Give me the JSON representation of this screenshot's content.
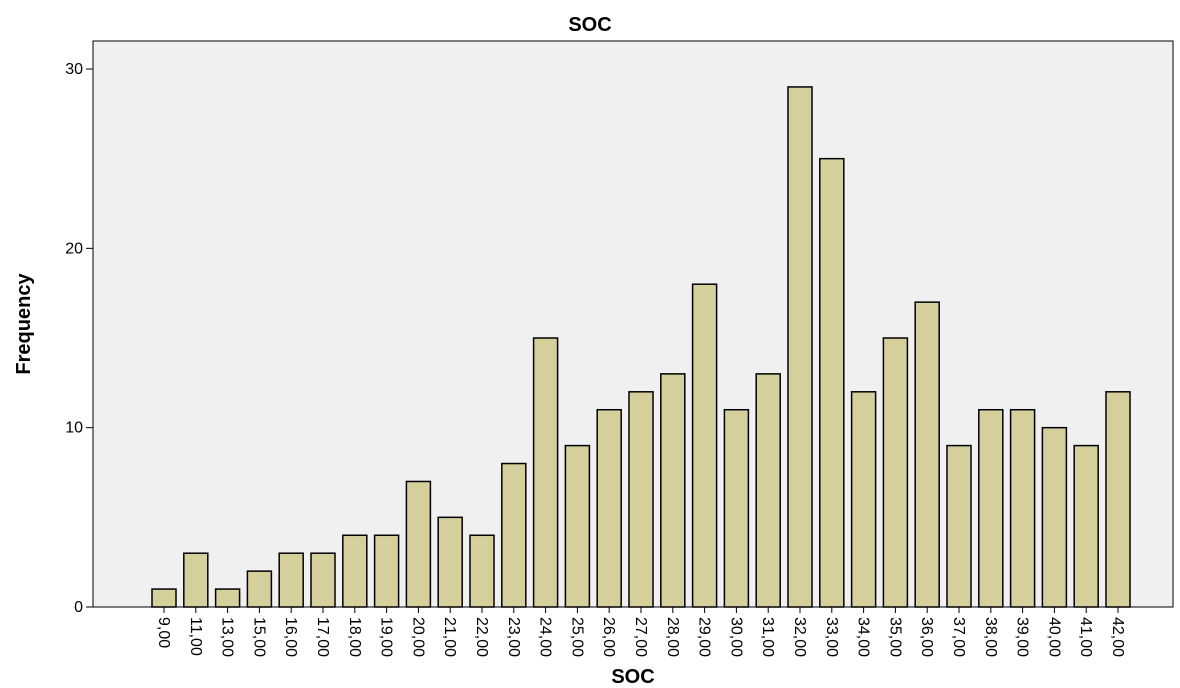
{
  "chart_data": {
    "type": "bar",
    "title": "SOC",
    "xlabel": "SOC",
    "ylabel": "Frequency",
    "ylim": [
      0,
      30
    ],
    "yticks": [
      0,
      10,
      20,
      30
    ],
    "grid": false,
    "categories": [
      "9,00",
      "11,00",
      "13,00",
      "15,00",
      "16,00",
      "17,00",
      "18,00",
      "19,00",
      "20,00",
      "21,00",
      "22,00",
      "23,00",
      "24,00",
      "25,00",
      "26,00",
      "27,00",
      "28,00",
      "29,00",
      "30,00",
      "31,00",
      "32,00",
      "33,00",
      "34,00",
      "35,00",
      "36,00",
      "37,00",
      "38,00",
      "39,00",
      "40,00",
      "41,00",
      "42,00"
    ],
    "values": [
      1,
      3,
      1,
      2,
      3,
      3,
      4,
      4,
      7,
      5,
      4,
      8,
      15,
      9,
      11,
      12,
      13,
      18,
      11,
      13,
      29,
      25,
      12,
      15,
      17,
      9,
      11,
      11,
      10,
      9,
      12
    ],
    "colors": {
      "bar": "#d5cf9c",
      "plot_background": "#f0f0f0",
      "outline": "#000000"
    }
  }
}
